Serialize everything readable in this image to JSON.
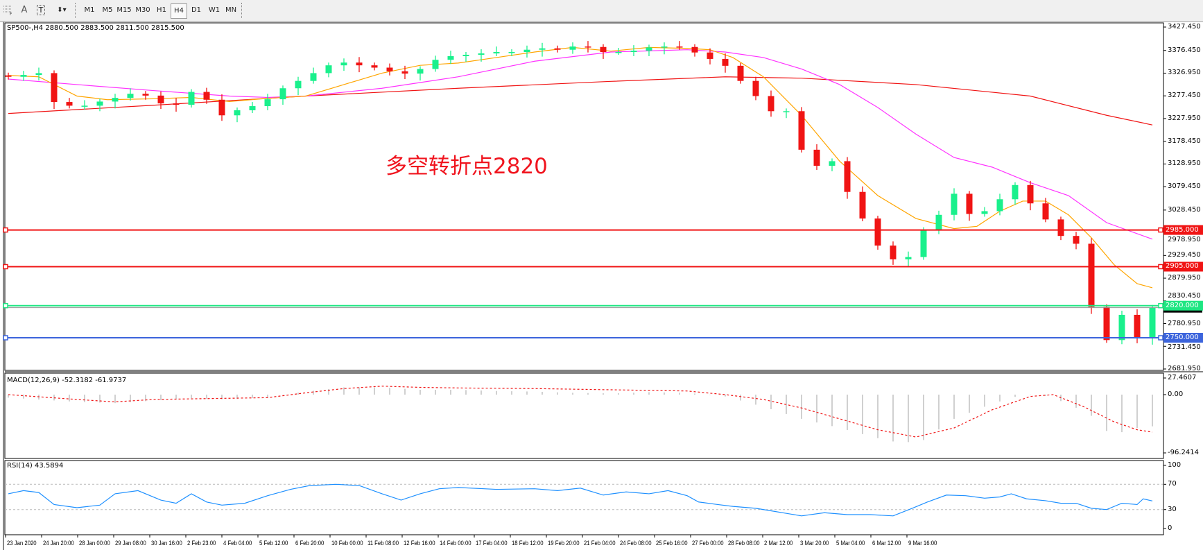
{
  "toolbar": {
    "icons": [
      "grid-f-icon",
      "text-a-icon",
      "text-label-icon",
      "arrows-icon"
    ],
    "timeframes": [
      "M1",
      "M5",
      "M15",
      "M30",
      "H1",
      "H4",
      "D1",
      "W1",
      "MN"
    ],
    "active_timeframe": "H4"
  },
  "main_pane": {
    "title": "SP500-,H4  2880.500 2883.500 2811.500 2815.500",
    "annotation": "多空转折点2820",
    "price_ticks": [
      "3427.450",
      "3376.450",
      "3326.950",
      "3277.450",
      "3227.950",
      "3178.450",
      "3128.950",
      "3079.450",
      "3028.450",
      "2978.950",
      "2929.450",
      "2879.950",
      "2830.450",
      "2780.950",
      "2731.450",
      "2681.950"
    ],
    "horizontal_lines": [
      {
        "label": "2985.000",
        "value": 2985,
        "color": "#f01414"
      },
      {
        "label": "2905.000",
        "value": 2905,
        "color": "#f01414"
      },
      {
        "label": "2820.000",
        "value": 2820,
        "color": "#1ee682"
      },
      {
        "label": "2750.000",
        "value": 2750,
        "color": "#3c64dc"
      }
    ],
    "current_price": {
      "label": "2815.500",
      "value": 2815.5
    }
  },
  "macd_pane": {
    "title": "MACD(12,26,9) -52.3182 -61.9737",
    "ticks": [
      "27.4607",
      "0.00",
      "-96.2414"
    ]
  },
  "rsi_pane": {
    "title": "RSI(14) 43.5894",
    "ticks": [
      "100",
      "70",
      "30",
      "0"
    ]
  },
  "time_axis": [
    "23 Jan 2020",
    "24 Jan 20:00",
    "28 Jan 00:00",
    "29 Jan 08:00",
    "30 Jan 16:00",
    "2 Feb 23:00",
    "4 Feb 04:00",
    "5 Feb 12:00",
    "6 Feb 20:00",
    "10 Feb 00:00",
    "11 Feb 08:00",
    "12 Feb 16:00",
    "14 Feb 00:00",
    "17 Feb 04:00",
    "18 Feb 12:00",
    "19 Feb 20:00",
    "21 Feb 04:00",
    "24 Feb 08:00",
    "25 Feb 16:00",
    "27 Feb 00:00",
    "28 Feb 08:00",
    "2 Mar 12:00",
    "3 Mar 20:00",
    "5 Mar 04:00",
    "6 Mar 12:00",
    "9 Mar 16:00"
  ],
  "colors": {
    "bull": "#19f08c",
    "bear": "#f01414",
    "ma_fast": "#ffa500",
    "ma_mid": "#ff32ff",
    "ma_slow": "#f01414",
    "macd_hist": "#c0c0c0",
    "macd_signal": "#f01414",
    "rsi": "#1e90ff"
  },
  "chart_data": {
    "type": "candlestick",
    "price_range": [
      2681.95,
      3427.45
    ],
    "closes": [
      3319,
      3323,
      3327,
      3264,
      3256,
      3256,
      3265,
      3273,
      3282,
      3278,
      3261,
      3258,
      3286,
      3269,
      3235,
      3246,
      3255,
      3270,
      3294,
      3310,
      3327,
      3344,
      3350,
      3344,
      3339,
      3331,
      3326,
      3336,
      3356,
      3364,
      3367,
      3370,
      3373,
      3373,
      3378,
      3381,
      3378,
      3385,
      3384,
      3373,
      3373,
      3376,
      3383,
      3385,
      3384,
      3372,
      3358,
      3343,
      3310,
      3277,
      3244,
      3244,
      3160,
      3125,
      3135,
      3068,
      3010,
      2951,
      2921,
      2926,
      2985,
      3018,
      3064,
      3020,
      3026,
      3052,
      3083,
      3043,
      3008,
      2972,
      2955,
      2817,
      2745,
      2800,
      2750,
      2815.5
    ],
    "ma_fast": [
      [
        0,
        3322
      ],
      [
        2,
        3319
      ],
      [
        4.5,
        3277
      ],
      [
        6.5,
        3269
      ],
      [
        9.5,
        3271
      ],
      [
        12,
        3274
      ],
      [
        14.5,
        3265
      ],
      [
        17,
        3272
      ],
      [
        19.5,
        3277
      ],
      [
        22,
        3302
      ],
      [
        24.5,
        3327
      ],
      [
        27,
        3344
      ],
      [
        29.5,
        3349
      ],
      [
        32,
        3361
      ],
      [
        34.5,
        3373
      ],
      [
        37,
        3383
      ],
      [
        39.5,
        3375
      ],
      [
        42,
        3383
      ],
      [
        44.5,
        3381
      ],
      [
        46,
        3378
      ],
      [
        47.5,
        3361
      ],
      [
        49.5,
        3319
      ],
      [
        52,
        3235
      ],
      [
        54.5,
        3135
      ],
      [
        57,
        3060
      ],
      [
        59.5,
        3010
      ],
      [
        62,
        2988
      ],
      [
        63.5,
        2993
      ],
      [
        65,
        3026
      ],
      [
        66.5,
        3048
      ],
      [
        68,
        3048
      ],
      [
        69.5,
        3018
      ],
      [
        71,
        2968
      ],
      [
        72.5,
        2909
      ],
      [
        74,
        2868
      ],
      [
        75,
        2859
      ]
    ],
    "ma_mid": [
      [
        0,
        3314
      ],
      [
        4.5,
        3302
      ],
      [
        9.5,
        3289
      ],
      [
        14.5,
        3277
      ],
      [
        17,
        3274
      ],
      [
        19.5,
        3277
      ],
      [
        24.5,
        3294
      ],
      [
        29.5,
        3319
      ],
      [
        34.5,
        3353
      ],
      [
        39.5,
        3373
      ],
      [
        44.5,
        3378
      ],
      [
        47,
        3373
      ],
      [
        49.5,
        3361
      ],
      [
        52,
        3336
      ],
      [
        54.5,
        3302
      ],
      [
        57,
        3252
      ],
      [
        59.5,
        3194
      ],
      [
        62,
        3143
      ],
      [
        64.5,
        3122
      ],
      [
        67,
        3088
      ],
      [
        69.5,
        3060
      ],
      [
        72,
        3001
      ],
      [
        75,
        2965
      ]
    ],
    "ma_slow": [
      [
        0,
        3239
      ],
      [
        9.5,
        3257
      ],
      [
        19.5,
        3277
      ],
      [
        29.5,
        3294
      ],
      [
        39.5,
        3309
      ],
      [
        47,
        3319
      ],
      [
        52,
        3316
      ],
      [
        59.5,
        3302
      ],
      [
        67,
        3277
      ],
      [
        72,
        3235
      ],
      [
        75,
        3214
      ]
    ],
    "macd_range": [
      -96.2414,
      27.4607
    ],
    "macd_hist": [
      [
        0,
        -5
      ],
      [
        4.5,
        -12
      ],
      [
        7,
        -14
      ],
      [
        9.5,
        -10
      ],
      [
        12,
        -6
      ],
      [
        14.5,
        -8
      ],
      [
        17,
        -4
      ],
      [
        19.5,
        5
      ],
      [
        22,
        12
      ],
      [
        24.5,
        12
      ],
      [
        27,
        8
      ],
      [
        29.5,
        8
      ],
      [
        32,
        6
      ],
      [
        34.5,
        5
      ],
      [
        37,
        3
      ],
      [
        39.5,
        2
      ],
      [
        42,
        4
      ],
      [
        44.5,
        3
      ],
      [
        47,
        -3
      ],
      [
        49.5,
        -20
      ],
      [
        52,
        -40
      ],
      [
        54.5,
        -55
      ],
      [
        57,
        -72
      ],
      [
        58.5,
        -80
      ],
      [
        60,
        -75
      ],
      [
        62,
        -40
      ],
      [
        64.5,
        -15
      ],
      [
        66.5,
        0
      ],
      [
        68,
        -2
      ],
      [
        69.5,
        -15
      ],
      [
        71,
        -35
      ],
      [
        72,
        -60
      ],
      [
        73,
        -62
      ],
      [
        74,
        -55
      ],
      [
        75,
        -52.3182
      ]
    ],
    "macd_signal": [
      [
        0,
        0
      ],
      [
        4.5,
        -8
      ],
      [
        7,
        -12
      ],
      [
        9.5,
        -8
      ],
      [
        14.5,
        -6
      ],
      [
        17,
        -5
      ],
      [
        19.5,
        3
      ],
      [
        22,
        10
      ],
      [
        24.5,
        14
      ],
      [
        27,
        12
      ],
      [
        29.5,
        11
      ],
      [
        34.5,
        10
      ],
      [
        39.5,
        8
      ],
      [
        44.5,
        6
      ],
      [
        47,
        0
      ],
      [
        49.5,
        -8
      ],
      [
        52,
        -22
      ],
      [
        54.5,
        -40
      ],
      [
        57,
        -58
      ],
      [
        59.5,
        -70
      ],
      [
        62,
        -55
      ],
      [
        64.5,
        -25
      ],
      [
        67,
        -3
      ],
      [
        68.5,
        0
      ],
      [
        70.5,
        -20
      ],
      [
        72.5,
        -45
      ],
      [
        74,
        -58
      ],
      [
        75,
        -61.9737
      ]
    ],
    "rsi": [
      [
        0,
        55
      ],
      [
        1,
        60
      ],
      [
        2,
        57
      ],
      [
        3,
        38
      ],
      [
        4.5,
        33
      ],
      [
        6,
        37
      ],
      [
        7,
        55
      ],
      [
        8.5,
        60
      ],
      [
        10,
        45
      ],
      [
        11,
        40
      ],
      [
        12,
        55
      ],
      [
        13,
        42
      ],
      [
        14,
        37
      ],
      [
        15.5,
        40
      ],
      [
        17,
        52
      ],
      [
        18.5,
        62
      ],
      [
        19.75,
        68
      ],
      [
        21.5,
        70
      ],
      [
        23,
        68
      ],
      [
        24.5,
        55
      ],
      [
        25.75,
        45
      ],
      [
        27,
        55
      ],
      [
        28.25,
        63
      ],
      [
        29.5,
        65
      ],
      [
        32,
        62
      ],
      [
        34.5,
        63
      ],
      [
        36,
        60
      ],
      [
        37.5,
        64
      ],
      [
        39,
        53
      ],
      [
        40.5,
        58
      ],
      [
        42,
        55
      ],
      [
        43.25,
        60
      ],
      [
        44.5,
        52
      ],
      [
        45.25,
        42
      ],
      [
        46.5,
        38
      ],
      [
        47.5,
        35
      ],
      [
        49,
        32
      ],
      [
        50,
        28
      ],
      [
        52,
        20
      ],
      [
        53.5,
        25
      ],
      [
        55,
        22
      ],
      [
        56.5,
        22
      ],
      [
        58,
        20
      ],
      [
        59.25,
        32
      ],
      [
        60.25,
        42
      ],
      [
        61.5,
        53
      ],
      [
        62.75,
        52
      ],
      [
        64,
        48
      ],
      [
        65,
        50
      ],
      [
        65.75,
        55
      ],
      [
        66.75,
        47
      ],
      [
        68,
        44
      ],
      [
        69,
        40
      ],
      [
        70,
        40
      ],
      [
        71,
        32
      ],
      [
        72,
        30
      ],
      [
        73,
        40
      ],
      [
        74,
        38
      ],
      [
        74.4,
        47
      ],
      [
        75,
        43.5894
      ]
    ],
    "rsi_levels": [
      30,
      70
    ]
  }
}
